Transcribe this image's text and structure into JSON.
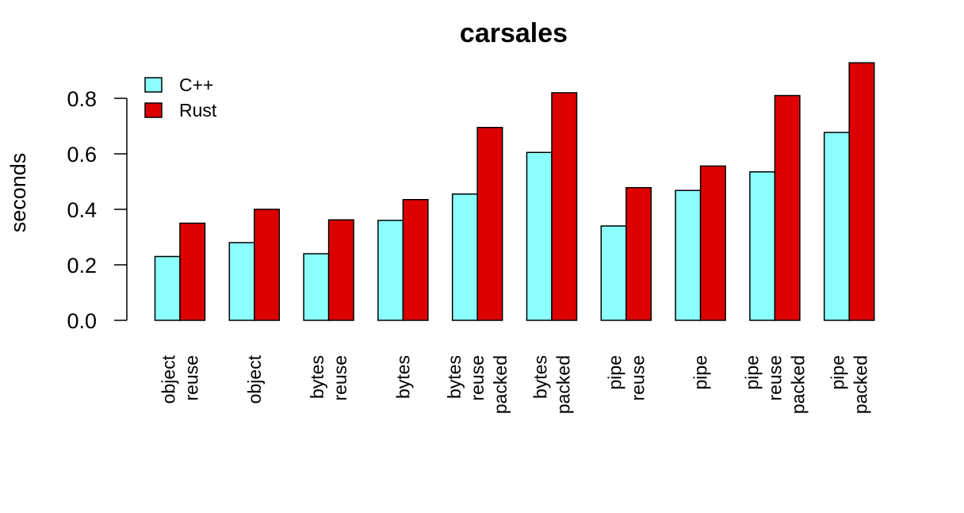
{
  "chart_data": {
    "type": "bar",
    "title": "carsales",
    "ylabel": "seconds",
    "ylim": [
      0,
      0.93
    ],
    "yticks": [
      "0.0",
      "0.2",
      "0.4",
      "0.6",
      "0.8"
    ],
    "grid": false,
    "legend_position": "top-left",
    "categories": [
      [
        "object",
        "reuse"
      ],
      [
        "object"
      ],
      [
        "bytes",
        "reuse"
      ],
      [
        "bytes"
      ],
      [
        "bytes",
        "reuse",
        "packed"
      ],
      [
        "bytes",
        "packed"
      ],
      [
        "pipe",
        "reuse"
      ],
      [
        "pipe"
      ],
      [
        "pipe",
        "reuse",
        "packed"
      ],
      [
        "pipe",
        "packed"
      ]
    ],
    "series": [
      {
        "name": "C++",
        "color": "#8cffff",
        "values": [
          0.23,
          0.28,
          0.24,
          0.36,
          0.455,
          0.605,
          0.34,
          0.468,
          0.535,
          0.677
        ]
      },
      {
        "name": "Rust",
        "color": "#dd0000",
        "values": [
          0.35,
          0.4,
          0.362,
          0.435,
          0.695,
          0.82,
          0.478,
          0.556,
          0.81,
          0.928
        ]
      }
    ]
  }
}
